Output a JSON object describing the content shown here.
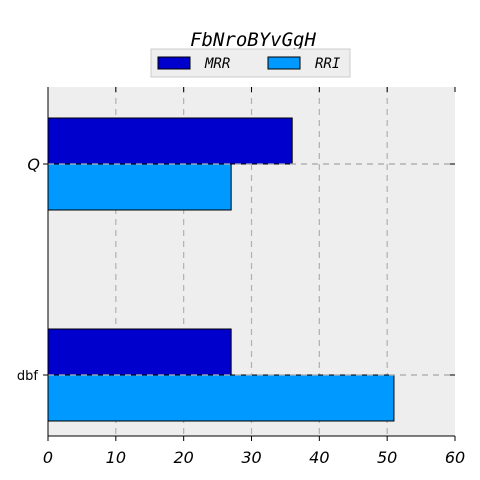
{
  "chart_data": {
    "type": "bar",
    "orientation": "horizontal",
    "title": "FbNroBYvGgH",
    "categories": [
      "Q",
      "dbf"
    ],
    "series": [
      {
        "name": "MRR",
        "color": "#0000cc",
        "values": [
          36,
          27
        ]
      },
      {
        "name": "RRI",
        "color": "#0099ff",
        "values": [
          27,
          51
        ]
      }
    ],
    "xlim": [
      0,
      60
    ],
    "xticks": [
      "0",
      "10",
      "20",
      "30",
      "40",
      "50",
      "60"
    ],
    "xlabel": "",
    "ylabel": "",
    "grid": true,
    "legend_position": "top-center",
    "plot_background": "#eeeeee"
  }
}
